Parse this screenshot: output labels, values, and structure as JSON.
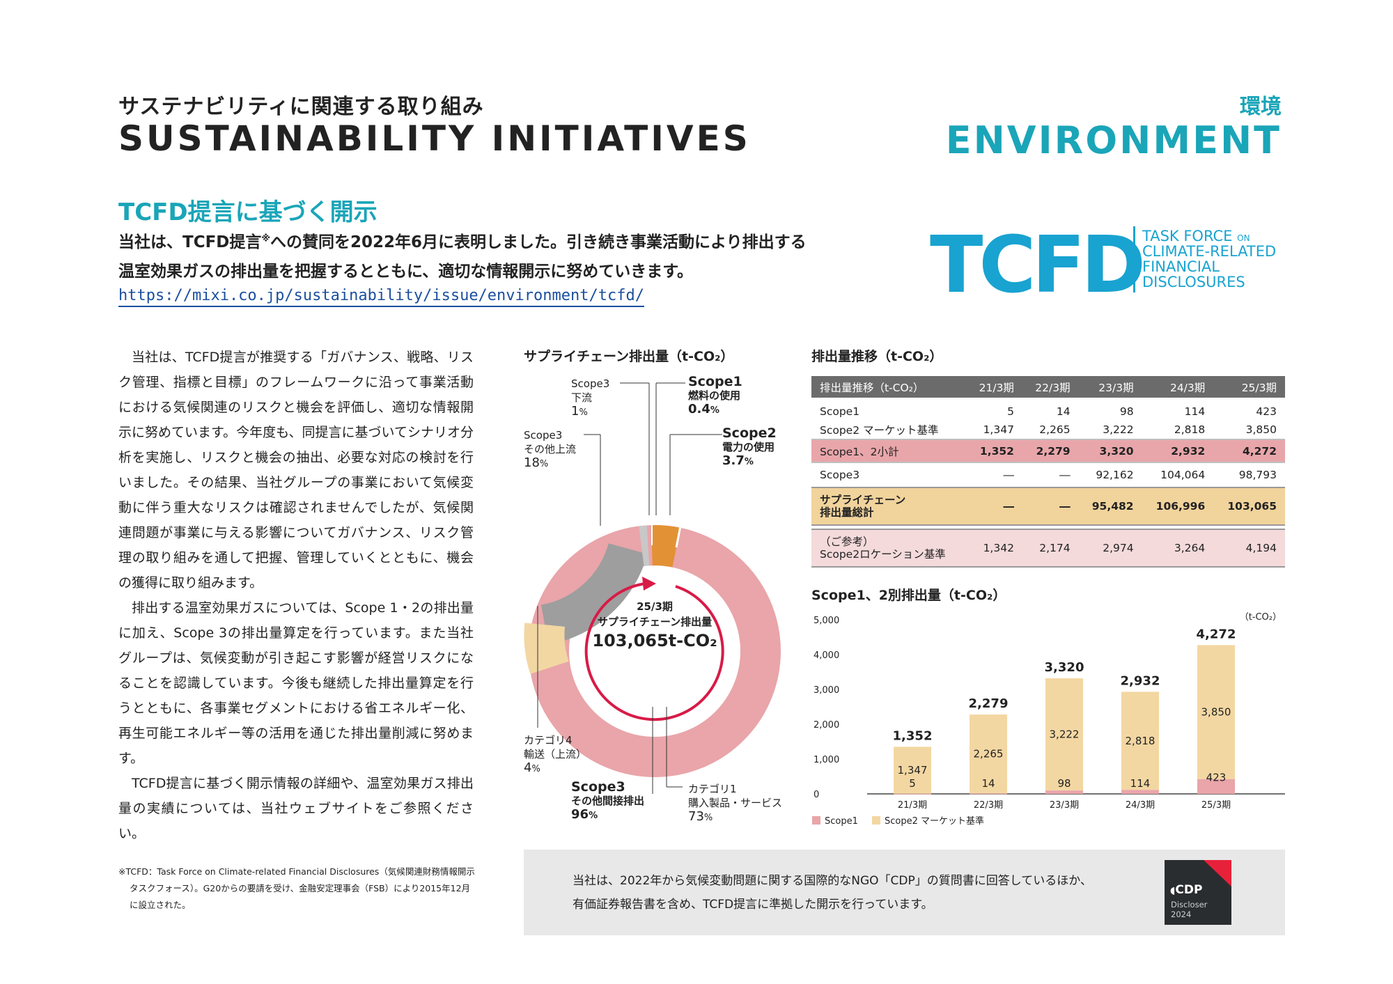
{
  "header": {
    "title_jp": "サステナビリティに関連する取り組み",
    "title_en": "SUSTAINABILITY INITIATIVES",
    "category_jp": "環境",
    "category_en": "ENVIRONMENT"
  },
  "section": {
    "title": "TCFD提言に基づく開示",
    "lead1_a": "当社は、TCFD提言",
    "lead1_mark": "※",
    "lead1_b": "への賛同を2022年6月に表明しました。引き続き事業活動により排出する",
    "lead2": "温室効果ガスの排出量を把握するとともに、適切な情報開示に努めていきます。",
    "link": "https://mixi.co.jp/sustainability/issue/environment/tcfd/"
  },
  "tcfd_logo": {
    "mark": "TCFD",
    "line1": "TASK FORCE",
    "line1_small": "ON",
    "line2": "CLIMATE-RELATED",
    "line3": "FINANCIAL",
    "line4": "DISCLOSURES"
  },
  "body": {
    "p1": "当社は、TCFD提言が推奨する「ガバナンス、戦略、リスク管理、指標と目標」のフレームワークに沿って事業活動における気候関連のリスクと機会を評価し、適切な情報開示に努めています。今年度も、同提言に基づいてシナリオ分析を実施し、リスクと機会の抽出、必要な対応の検討を行いました。その結果、当社グループの事業において気候変動に伴う重大なリスクは確認されませんでしたが、気候関連問題が事業に与える影響についてガバナンス、リスク管理の取り組みを通して把握、管理していくとともに、機会の獲得に取り組みます。",
    "p2": "排出する温室効果ガスについては、Scope 1・2の排出量に加え、Scope 3の排出量算定を行っています。また当社グループは、気候変動が引き起こす影響が経営リスクになることを認識しています。今後も継続した排出量算定を行うとともに、各事業セグメントにおける省エネルギー化、再生可能エネルギー等の活用を通じた排出量削減に努めます。",
    "p3": "TCFD提言に基づく開示情報の詳細や、温室効果ガス排出量の実績については、当社ウェブサイトをご参照ください。",
    "footnote": "※TCFD：Task Force on Climate-related Financial Disclosures（気候関連財務情報開示タスクフォース）。G20からの要請を受け、金融安定理事会（FSB）により2015年12月に設立された。"
  },
  "donut": {
    "title": "サプライチェーン排出量（t-CO₂）",
    "center_period": "25/3期",
    "center_label": "サプライチェーン排出量",
    "center_value": "103,065t-CO₂",
    "labels": {
      "scope1_name": "Scope1",
      "scope1_sub": "燃料の使用",
      "scope1_pct": "0.4",
      "scope2_name": "Scope2",
      "scope2_sub": "電力の使用",
      "scope2_pct": "3.7",
      "s3down_name": "Scope3",
      "s3down_sub": "下流",
      "s3down_pct": "1",
      "s3other_name": "Scope3",
      "s3other_sub": "その他上流",
      "s3other_pct": "18",
      "cat4_name": "カテゴリ4",
      "cat4_sub": "輸送（上流）",
      "cat4_pct": "4",
      "scope3_name": "Scope3",
      "scope3_sub": "その他間接排出",
      "scope3_pct": "96",
      "cat1_name": "カテゴリ1",
      "cat1_sub": "購入製品・サービス",
      "cat1_pct": "73",
      "pct_sign": "%"
    }
  },
  "table": {
    "title": "排出量推移（t-CO₂）",
    "headers": [
      "排出量推移（t-CO₂）",
      "21/3期",
      "22/3期",
      "23/3期",
      "24/3期",
      "25/3期"
    ],
    "rows": [
      [
        "Scope1",
        "5",
        "14",
        "98",
        "114",
        "423"
      ],
      [
        "Scope2 マーケット基準",
        "1,347",
        "2,265",
        "3,222",
        "2,818",
        "3,850"
      ],
      [
        "Scope1、2小計",
        "1,352",
        "2,279",
        "3,320",
        "2,932",
        "4,272"
      ],
      [
        "Scope3",
        "―",
        "―",
        "92,162",
        "104,064",
        "98,793"
      ],
      [
        "サプライチェーン",
        "―",
        "―",
        "95,482",
        "106,996",
        "103,065"
      ],
      [
        "（ご参考）",
        "1,342",
        "2,174",
        "2,974",
        "3,264",
        "4,194"
      ]
    ],
    "row5_line2": "排出量総計",
    "row6_line2": "Scope2ロケーション基準"
  },
  "chart_data": {
    "type": "bar",
    "title": "Scope1、2別排出量（t-CO₂）",
    "unit": "（t-CO₂）",
    "categories": [
      "21/3期",
      "22/3期",
      "23/3期",
      "24/3期",
      "25/3期"
    ],
    "series": [
      {
        "name": "Scope1",
        "values": [
          5,
          14,
          98,
          114,
          423
        ],
        "color": "#e9a5a9"
      },
      {
        "name": "Scope2 マーケット基準",
        "values": [
          1347,
          2265,
          3222,
          2818,
          3850
        ],
        "color": "#f3d7a2"
      }
    ],
    "totals": [
      1352,
      2279,
      3320,
      2932,
      4272
    ],
    "total_labels": [
      "1,352",
      "2,279",
      "3,320",
      "2,932",
      "4,272"
    ],
    "scope1_labels": [
      "5",
      "14",
      "98",
      "114",
      "423"
    ],
    "scope2_labels": [
      "1,347",
      "2,265",
      "3,222",
      "2,818",
      "3,850"
    ],
    "yticks": [
      0,
      1000,
      2000,
      3000,
      4000,
      5000
    ],
    "ytick_labels": [
      "0",
      "1,000",
      "2,000",
      "3,000",
      "4,000",
      "5,000"
    ],
    "ylim": [
      0,
      5000
    ],
    "stacked": true,
    "legend_position": "bottom-left"
  },
  "cdp": {
    "line1": "当社は、2022年から気候変動問題に関する国際的なNGO「CDP」の質問書に回答しているほか、",
    "line2": "有価証券報告書を含め、TCFD提言に準拠した開示を行っています。",
    "badge_logo": "CDP",
    "badge_sub1": "Discloser",
    "badge_sub2": "2024"
  }
}
